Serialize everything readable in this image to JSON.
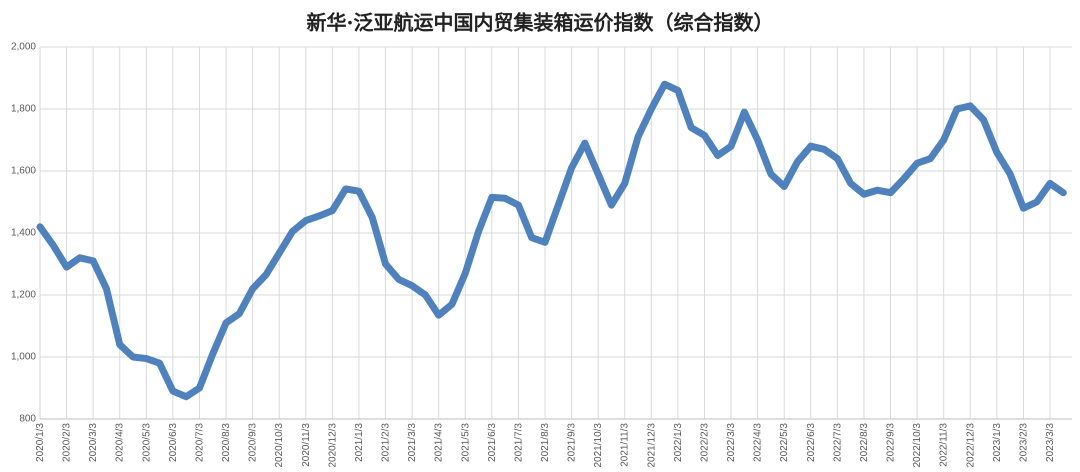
{
  "chart_data": {
    "type": "line",
    "title": "新华·泛亚航运中国内贸集装箱运价指数（综合指数）",
    "categories": [
      "2020/1/3",
      null,
      "2020/2/3",
      null,
      "2020/3/3",
      null,
      "2020/4/3",
      null,
      "2020/5/3",
      null,
      "2020/6/3",
      null,
      "2020/7/3",
      null,
      "2020/8/3",
      null,
      "2020/9/3",
      null,
      "2020/10/3",
      null,
      "2020/11/3",
      null,
      "2020/12/3",
      null,
      "2021/1/3",
      null,
      "2021/2/3",
      null,
      "2021/3/3",
      null,
      "2021/4/3",
      null,
      "2021/5/3",
      null,
      "2021/6/3",
      null,
      "2021/7/3",
      null,
      "2021/8/3",
      null,
      "2021/9/3",
      null,
      "2021/10/3",
      null,
      "2021/11/3",
      null,
      "2021/12/3",
      null,
      "2022/1/3",
      null,
      "2022/2/3",
      null,
      "2022/3/3",
      null,
      "2022/4/3",
      null,
      "2022/5/3",
      null,
      "2022/6/3",
      null,
      "2022/7/3",
      null,
      "2022/8/3",
      null,
      "2022/9/3",
      null,
      "2022/10/3",
      null,
      "2022/11/3",
      null,
      "2022/12/3",
      null,
      "2023/1/3",
      null,
      "2023/2/3",
      null,
      "2023/3/3",
      null
    ],
    "series": [
      {
        "name": "综合指数",
        "color": "#4f81bd",
        "values": [
          1420,
          1360,
          1290,
          1320,
          1310,
          1220,
          1040,
          1000,
          995,
          980,
          890,
          872,
          900,
          1010,
          1110,
          1140,
          1220,
          1265,
          1335,
          1405,
          1440,
          1455,
          1472,
          1542,
          1535,
          1450,
          1300,
          1250,
          1230,
          1200,
          1135,
          1170,
          1270,
          1405,
          1515,
          1512,
          1490,
          1385,
          1370,
          1490,
          1610,
          1690,
          1590,
          1490,
          1560,
          1710,
          1800,
          1880,
          1860,
          1740,
          1715,
          1650,
          1680,
          1790,
          1700,
          1590,
          1550,
          1630,
          1680,
          1670,
          1640,
          1560,
          1525,
          1538,
          1530,
          1575,
          1625,
          1640,
          1700,
          1800,
          1810,
          1765,
          1660,
          1590,
          1480,
          1500,
          1560,
          1530
        ]
      }
    ],
    "ylim": [
      800,
      2000
    ],
    "yticks": [
      {
        "value": 800,
        "label": "800"
      },
      {
        "value": 1000,
        "label": "1,000"
      },
      {
        "value": 1200,
        "label": "1,200"
      },
      {
        "value": 1400,
        "label": "1,400"
      },
      {
        "value": 1600,
        "label": "1,600"
      },
      {
        "value": 1800,
        "label": "1,800"
      },
      {
        "value": 2000,
        "label": "2,000"
      }
    ],
    "grid": true
  }
}
